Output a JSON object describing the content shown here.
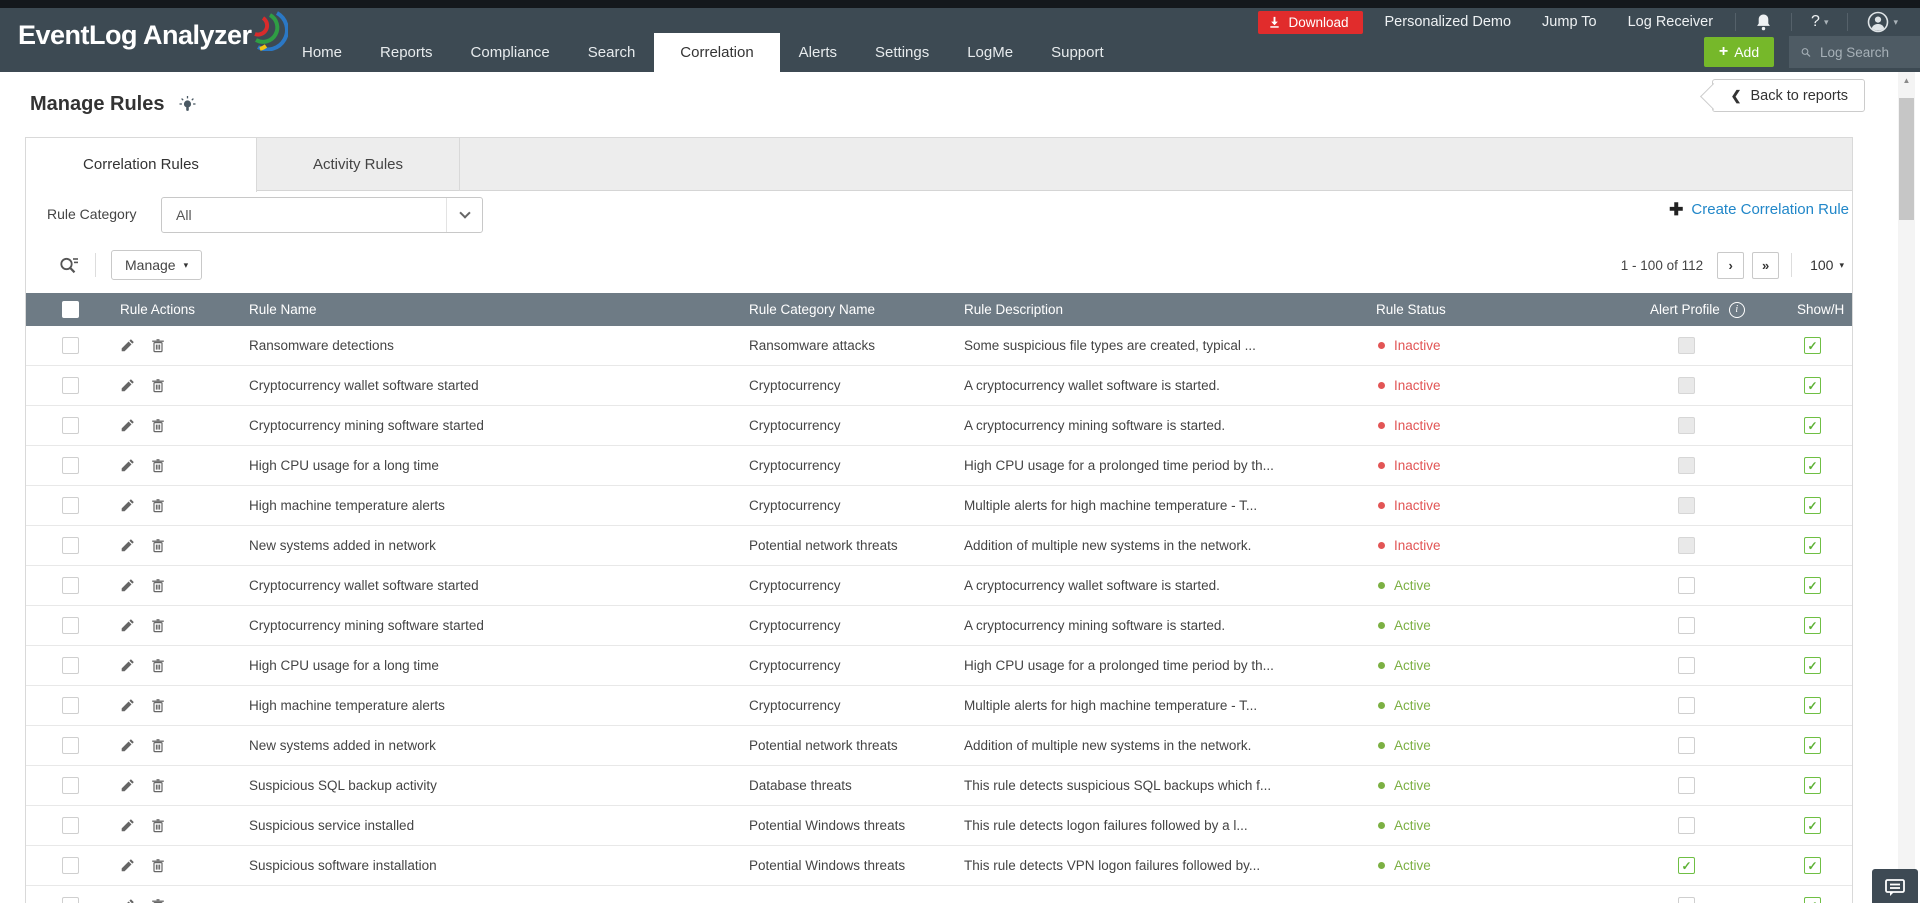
{
  "header": {
    "logo_text": "EventLog Analyzer",
    "nav": [
      {
        "label": "Home",
        "active": false
      },
      {
        "label": "Reports",
        "active": false
      },
      {
        "label": "Compliance",
        "active": false
      },
      {
        "label": "Search",
        "active": false
      },
      {
        "label": "Correlation",
        "active": true
      },
      {
        "label": "Alerts",
        "active": false
      },
      {
        "label": "Settings",
        "active": false
      },
      {
        "label": "LogMe",
        "active": false
      },
      {
        "label": "Support",
        "active": false
      }
    ],
    "download_label": "Download",
    "personalized_demo_label": "Personalized Demo",
    "jump_to_label": "Jump To",
    "log_receiver_label": "Log Receiver",
    "help_label": "?",
    "add_label": "Add",
    "search_placeholder": "Log Search"
  },
  "page": {
    "title": "Manage Rules",
    "back_label": "Back to reports"
  },
  "tabs": [
    {
      "label": "Correlation Rules",
      "active": true
    },
    {
      "label": "Activity Rules",
      "active": false
    }
  ],
  "filter": {
    "label": "Rule Category",
    "value": "All"
  },
  "create_rule_label": "Create Correlation Rule",
  "toolbar": {
    "manage_label": "Manage",
    "pagination": "1 - 100 of 112",
    "page_size": "100",
    "next_glyph": "›",
    "last_glyph": "»"
  },
  "table": {
    "headers": {
      "actions": "Rule Actions",
      "name": "Rule Name",
      "category": "Rule Category Name",
      "description": "Rule Description",
      "status": "Rule Status",
      "alert_profile": "Alert Profile",
      "show_hide": "Show/H",
      "info_glyph": "i"
    },
    "rows": [
      {
        "name": "Ransomware detections",
        "category": "Ransomware attacks",
        "description": "Some suspicious file types are created, typical ...",
        "status": "Inactive",
        "alert_profile": "disabled",
        "show_hide": "checked"
      },
      {
        "name": "Cryptocurrency wallet software started",
        "category": "Cryptocurrency",
        "description": "A cryptocurrency wallet software is started.",
        "status": "Inactive",
        "alert_profile": "disabled",
        "show_hide": "checked"
      },
      {
        "name": "Cryptocurrency mining software started",
        "category": "Cryptocurrency",
        "description": "A cryptocurrency mining software is started.",
        "status": "Inactive",
        "alert_profile": "disabled",
        "show_hide": "checked"
      },
      {
        "name": "High CPU usage for a long time",
        "category": "Cryptocurrency",
        "description": "High CPU usage for a prolonged time period by th...",
        "status": "Inactive",
        "alert_profile": "disabled",
        "show_hide": "checked"
      },
      {
        "name": "High machine temperature alerts",
        "category": "Cryptocurrency",
        "description": "Multiple alerts for high machine temperature - T...",
        "status": "Inactive",
        "alert_profile": "disabled",
        "show_hide": "checked"
      },
      {
        "name": "New systems added in network",
        "category": "Potential network threats",
        "description": "Addition of multiple new systems in the network.",
        "status": "Inactive",
        "alert_profile": "disabled",
        "show_hide": "checked"
      },
      {
        "name": "Cryptocurrency wallet software started",
        "category": "Cryptocurrency",
        "description": "A cryptocurrency wallet software is started.",
        "status": "Active",
        "alert_profile": "unchecked",
        "show_hide": "checked"
      },
      {
        "name": "Cryptocurrency mining software started",
        "category": "Cryptocurrency",
        "description": "A cryptocurrency mining software is started.",
        "status": "Active",
        "alert_profile": "unchecked",
        "show_hide": "checked"
      },
      {
        "name": "High CPU usage for a long time",
        "category": "Cryptocurrency",
        "description": "High CPU usage for a prolonged time period by th...",
        "status": "Active",
        "alert_profile": "unchecked",
        "show_hide": "checked"
      },
      {
        "name": "High machine temperature alerts",
        "category": "Cryptocurrency",
        "description": "Multiple alerts for high machine temperature - T...",
        "status": "Active",
        "alert_profile": "unchecked",
        "show_hide": "checked"
      },
      {
        "name": "New systems added in network",
        "category": "Potential network threats",
        "description": "Addition of multiple new systems in the network.",
        "status": "Active",
        "alert_profile": "unchecked",
        "show_hide": "checked"
      },
      {
        "name": "Suspicious SQL backup activity",
        "category": "Database threats",
        "description": "This rule detects suspicious SQL backups which f...",
        "status": "Active",
        "alert_profile": "unchecked",
        "show_hide": "checked"
      },
      {
        "name": "Suspicious service installed",
        "category": "Potential Windows threats",
        "description": "This rule detects logon failures followed by a l...",
        "status": "Active",
        "alert_profile": "unchecked",
        "show_hide": "checked"
      },
      {
        "name": "Suspicious software installation",
        "category": "Potential Windows threats",
        "description": "This rule detects VPN logon failures followed by...",
        "status": "Active",
        "alert_profile": "checked",
        "show_hide": "checked"
      }
    ],
    "has_partial_row": true
  },
  "colors": {
    "header_bg": "#3d4a53",
    "accent_green": "#76b82a",
    "download_red": "#e12c2c",
    "link_blue": "#2187c9",
    "status_active": "#7cb043",
    "status_inactive": "#e25555",
    "table_header_bg": "#6e7b85",
    "check_green": "#5cb133"
  }
}
